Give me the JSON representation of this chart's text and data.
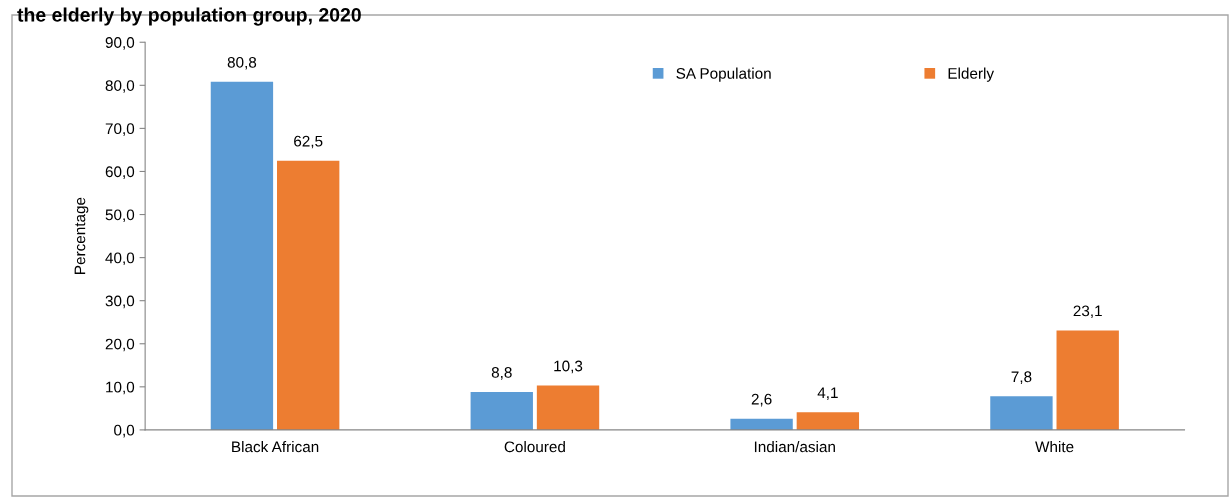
{
  "chart_data": {
    "type": "bar",
    "title": "the elderly by population group, 2020",
    "ylabel": "Percentage",
    "categories": [
      "Black African",
      "Coloured",
      "Indian/asian",
      "White"
    ],
    "series": [
      {
        "name": "SA Population",
        "color": "#5b9bd5",
        "values": [
          80.8,
          8.8,
          2.6,
          7.8
        ],
        "value_labels": [
          "80,8",
          "8,8",
          "2,6",
          "7,8"
        ]
      },
      {
        "name": "Elderly",
        "color": "#ed7d31",
        "values": [
          62.5,
          10.3,
          4.1,
          23.1
        ],
        "value_labels": [
          "62,5",
          "10,3",
          "4,1",
          "23,1"
        ]
      }
    ],
    "ylim": [
      0,
      90
    ],
    "yticks": [
      {
        "value": 0,
        "label": "0,0"
      },
      {
        "value": 10,
        "label": "10,0"
      },
      {
        "value": 20,
        "label": "20,0"
      },
      {
        "value": 30,
        "label": "30,0"
      },
      {
        "value": 40,
        "label": "40,0"
      },
      {
        "value": 50,
        "label": "50,0"
      },
      {
        "value": 60,
        "label": "60,0"
      },
      {
        "value": 70,
        "label": "70,0"
      },
      {
        "value": 80,
        "label": "80,0"
      },
      {
        "value": 90,
        "label": "90,0"
      }
    ],
    "grid": false,
    "legend": "top right"
  }
}
